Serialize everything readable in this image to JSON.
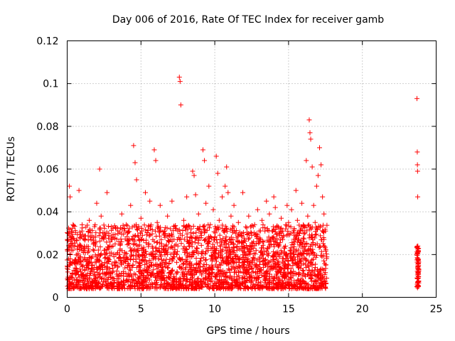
{
  "chart_data": {
    "type": "scatter",
    "title": "Day 006 of 2016, Rate Of TEC Index for receiver gamb",
    "xlabel": "GPS time / hours",
    "ylabel": "ROTI / TECUs",
    "xlim": [
      0,
      25
    ],
    "ylim": [
      0,
      0.12
    ],
    "xticks": [
      0,
      5,
      10,
      15,
      20,
      25
    ],
    "yticks": [
      0,
      0.02,
      0.04,
      0.06,
      0.08,
      0.1,
      0.12
    ],
    "xtick_labels": [
      "0",
      "5",
      "10",
      "15",
      "20",
      "25"
    ],
    "ytick_labels": [
      "0",
      "0.02",
      "0.04",
      "0.06",
      "0.08",
      "0.1",
      "0.12"
    ],
    "grid": true,
    "marker": "+",
    "color": "#ff0000",
    "series": [
      {
        "name": "ROTI",
        "points": [
          [
            0.05,
            0.013
          ],
          [
            0.1,
            0.018
          ],
          [
            0.15,
            0.052
          ],
          [
            0.2,
            0.047
          ],
          [
            0.25,
            0.028
          ],
          [
            0.3,
            0.022
          ],
          [
            0.4,
            0.034
          ],
          [
            0.5,
            0.016
          ],
          [
            0.6,
            0.011
          ],
          [
            0.7,
            0.024
          ],
          [
            0.8,
            0.05
          ],
          [
            0.9,
            0.019
          ],
          [
            1.0,
            0.031
          ],
          [
            1.1,
            0.009
          ],
          [
            1.2,
            0.027
          ],
          [
            1.3,
            0.014
          ],
          [
            1.4,
            0.021
          ],
          [
            1.5,
            0.036
          ],
          [
            1.6,
            0.012
          ],
          [
            1.7,
            0.019
          ],
          [
            1.8,
            0.025
          ],
          [
            1.9,
            0.008
          ],
          [
            2.0,
            0.044
          ],
          [
            2.1,
            0.017
          ],
          [
            2.2,
            0.06
          ],
          [
            2.3,
            0.038
          ],
          [
            2.4,
            0.013
          ],
          [
            2.5,
            0.022
          ],
          [
            2.6,
            0.029
          ],
          [
            2.7,
            0.049
          ],
          [
            2.8,
            0.018
          ],
          [
            2.9,
            0.011
          ],
          [
            3.0,
            0.033
          ],
          [
            3.1,
            0.024
          ],
          [
            3.2,
            0.015
          ],
          [
            3.3,
            0.02
          ],
          [
            3.4,
            0.007
          ],
          [
            3.5,
            0.026
          ],
          [
            3.6,
            0.017
          ],
          [
            3.7,
            0.039
          ],
          [
            3.8,
            0.012
          ],
          [
            3.9,
            0.021
          ],
          [
            4.0,
            0.034
          ],
          [
            4.1,
            0.018
          ],
          [
            4.2,
            0.027
          ],
          [
            4.3,
            0.043
          ],
          [
            4.4,
            0.014
          ],
          [
            4.5,
            0.071
          ],
          [
            4.6,
            0.063
          ],
          [
            4.7,
            0.055
          ],
          [
            4.8,
            0.024
          ],
          [
            4.9,
            0.016
          ],
          [
            5.0,
            0.037
          ],
          [
            5.1,
            0.029
          ],
          [
            5.2,
            0.021
          ],
          [
            5.3,
            0.049
          ],
          [
            5.4,
            0.013
          ],
          [
            5.5,
            0.033
          ],
          [
            5.6,
            0.045
          ],
          [
            5.7,
            0.02
          ],
          [
            5.8,
            0.027
          ],
          [
            5.9,
            0.069
          ],
          [
            6.0,
            0.064
          ],
          [
            6.1,
            0.035
          ],
          [
            6.2,
            0.018
          ],
          [
            6.3,
            0.043
          ],
          [
            6.4,
            0.025
          ],
          [
            6.5,
            0.012
          ],
          [
            6.6,
            0.031
          ],
          [
            6.7,
            0.022
          ],
          [
            6.8,
            0.038
          ],
          [
            6.9,
            0.016
          ],
          [
            7.0,
            0.027
          ],
          [
            7.1,
            0.045
          ],
          [
            7.2,
            0.019
          ],
          [
            7.3,
            0.033
          ],
          [
            7.4,
            0.011
          ],
          [
            7.5,
            0.024
          ],
          [
            7.6,
            0.103
          ],
          [
            7.65,
            0.101
          ],
          [
            7.7,
            0.09
          ],
          [
            7.8,
            0.029
          ],
          [
            7.9,
            0.036
          ],
          [
            8.0,
            0.021
          ],
          [
            8.1,
            0.047
          ],
          [
            8.2,
            0.026
          ],
          [
            8.3,
            0.014
          ],
          [
            8.4,
            0.032
          ],
          [
            8.5,
            0.059
          ],
          [
            8.6,
            0.057
          ],
          [
            8.7,
            0.048
          ],
          [
            8.8,
            0.023
          ],
          [
            8.9,
            0.039
          ],
          [
            9.0,
            0.017
          ],
          [
            9.1,
            0.029
          ],
          [
            9.2,
            0.069
          ],
          [
            9.3,
            0.064
          ],
          [
            9.4,
            0.044
          ],
          [
            9.5,
            0.025
          ],
          [
            9.6,
            0.052
          ],
          [
            9.7,
            0.034
          ],
          [
            9.8,
            0.019
          ],
          [
            9.9,
            0.041
          ],
          [
            10.0,
            0.028
          ],
          [
            10.1,
            0.066
          ],
          [
            10.2,
            0.058
          ],
          [
            10.3,
            0.036
          ],
          [
            10.4,
            0.022
          ],
          [
            10.5,
            0.047
          ],
          [
            10.6,
            0.031
          ],
          [
            10.7,
            0.052
          ],
          [
            10.8,
            0.061
          ],
          [
            10.9,
            0.049
          ],
          [
            11.0,
            0.027
          ],
          [
            11.1,
            0.038
          ],
          [
            11.2,
            0.018
          ],
          [
            11.3,
            0.043
          ],
          [
            11.4,
            0.03
          ],
          [
            11.5,
            0.022
          ],
          [
            11.6,
            0.035
          ],
          [
            11.7,
            0.014
          ],
          [
            11.8,
            0.026
          ],
          [
            11.9,
            0.049
          ],
          [
            12.0,
            0.021
          ],
          [
            12.1,
            0.033
          ],
          [
            12.2,
            0.017
          ],
          [
            12.3,
            0.038
          ],
          [
            12.4,
            0.024
          ],
          [
            12.5,
            0.029
          ],
          [
            12.6,
            0.012
          ],
          [
            12.7,
            0.034
          ],
          [
            12.8,
            0.022
          ],
          [
            12.9,
            0.041
          ],
          [
            13.0,
            0.018
          ],
          [
            13.1,
            0.027
          ],
          [
            13.2,
            0.036
          ],
          [
            13.3,
            0.014
          ],
          [
            13.4,
            0.031
          ],
          [
            13.5,
            0.045
          ],
          [
            13.6,
            0.023
          ],
          [
            13.7,
            0.039
          ],
          [
            13.8,
            0.017
          ],
          [
            13.9,
            0.028
          ],
          [
            14.0,
            0.047
          ],
          [
            14.1,
            0.042
          ],
          [
            14.2,
            0.025
          ],
          [
            14.3,
            0.033
          ],
          [
            14.4,
            0.019
          ],
          [
            14.5,
            0.037
          ],
          [
            14.6,
            0.027
          ],
          [
            14.7,
            0.015
          ],
          [
            14.8,
            0.032
          ],
          [
            14.9,
            0.043
          ],
          [
            15.0,
            0.035
          ],
          [
            15.1,
            0.022
          ],
          [
            15.2,
            0.041
          ],
          [
            15.3,
            0.018
          ],
          [
            15.4,
            0.029
          ],
          [
            15.5,
            0.05
          ],
          [
            15.6,
            0.036
          ],
          [
            15.7,
            0.014
          ],
          [
            15.8,
            0.031
          ],
          [
            15.9,
            0.044
          ],
          [
            16.0,
            0.026
          ],
          [
            16.1,
            0.033
          ],
          [
            16.2,
            0.064
          ],
          [
            16.3,
            0.038
          ],
          [
            16.4,
            0.083
          ],
          [
            16.45,
            0.077
          ],
          [
            16.5,
            0.074
          ],
          [
            16.6,
            0.061
          ],
          [
            16.7,
            0.043
          ],
          [
            16.8,
            0.035
          ],
          [
            16.9,
            0.052
          ],
          [
            17.0,
            0.057
          ],
          [
            17.1,
            0.07
          ],
          [
            17.2,
            0.062
          ],
          [
            17.3,
            0.047
          ],
          [
            17.4,
            0.039
          ],
          [
            17.5,
            0.031
          ],
          [
            23.7,
            0.093
          ],
          [
            23.72,
            0.068
          ],
          [
            23.73,
            0.062
          ],
          [
            23.74,
            0.059
          ],
          [
            23.75,
            0.047
          ],
          [
            23.76,
            0.024
          ],
          [
            23.77,
            0.018
          ],
          [
            23.78,
            0.013
          ],
          [
            23.79,
            0.009
          ],
          [
            23.8,
            0.005
          ]
        ]
      }
    ]
  }
}
